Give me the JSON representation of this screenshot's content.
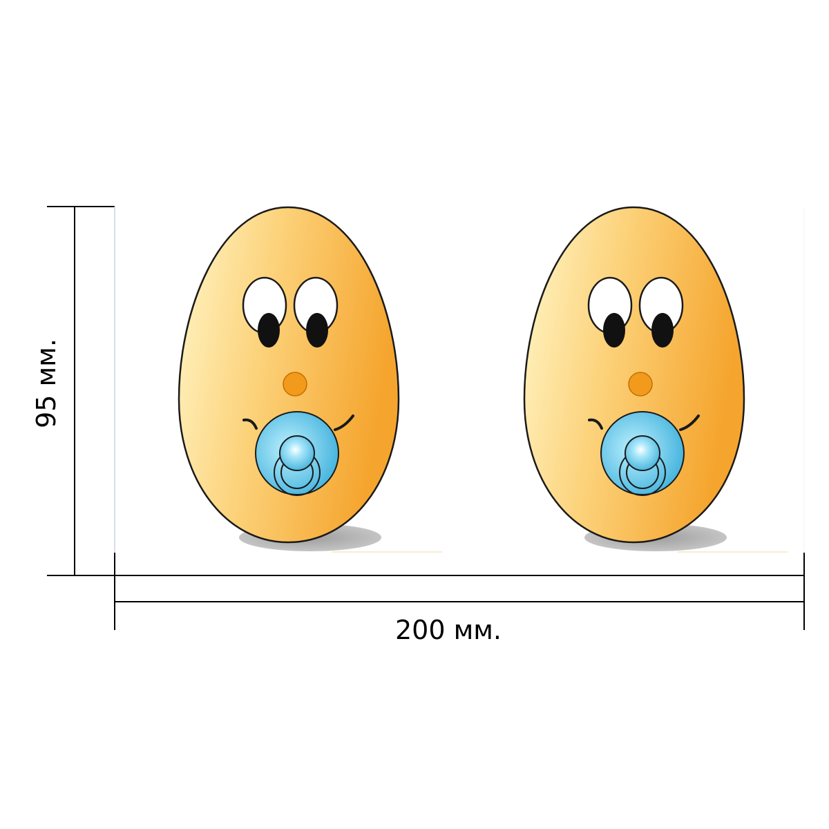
{
  "dimensions": {
    "height_label": "95 мм.",
    "width_label": "200 мм."
  },
  "stickers": [
    {
      "name": "baby-egg-left",
      "icon": "egg-with-pacifier"
    },
    {
      "name": "baby-egg-right",
      "icon": "egg-with-pacifier"
    }
  ],
  "colors": {
    "egg_light": "#FFF6C8",
    "egg_dark": "#F5A52E",
    "outline": "#1a1a1a",
    "nose": "#F29A1C",
    "pacifier_light": "#BDF1FF",
    "pacifier_dark": "#3FB0DB",
    "shadow": "#A8A8A8"
  }
}
